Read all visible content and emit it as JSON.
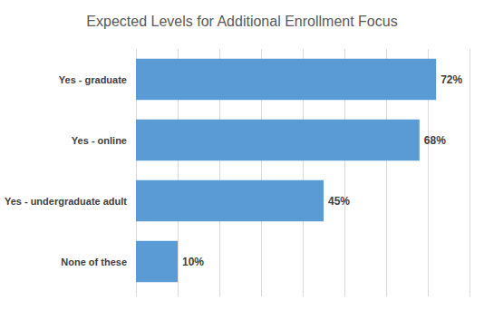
{
  "chart_data": {
    "type": "bar",
    "title": "Expected Levels for Additional Enrollment Focus",
    "categories": [
      "Yes - graduate",
      "Yes - online",
      "Yes - undergraduate adult",
      "None of these"
    ],
    "values": [
      72,
      68,
      45,
      10
    ],
    "value_labels": [
      "72%",
      "68%",
      "45%",
      "10%"
    ],
    "color": "#5b9bd5",
    "orientation": "horizontal",
    "xlim": [
      0,
      80
    ],
    "xticks": [
      0,
      10,
      20,
      30,
      40,
      50,
      60,
      70,
      80
    ],
    "grid": true,
    "data_labels": true,
    "tick_labels": "y"
  }
}
